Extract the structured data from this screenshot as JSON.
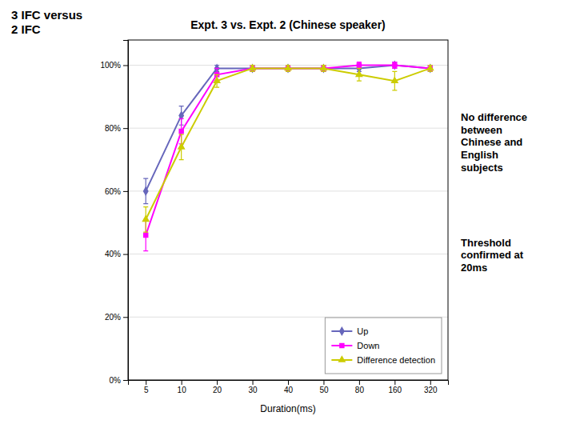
{
  "chart_data": {
    "type": "line",
    "title": "Expt. 3 vs. Expt. 2 (Chinese speaker)",
    "xlabel": "Duration(ms)",
    "categories": [
      "5",
      "10",
      "20",
      "30",
      "40",
      "50",
      "80",
      "160",
      "320"
    ],
    "series": [
      {
        "name": "Up",
        "color": "#6666bb",
        "marker": "diamond",
        "values": [
          0.6,
          0.84,
          0.99,
          0.99,
          0.99,
          0.99,
          0.99,
          1.0,
          0.99
        ],
        "errors": [
          0.04,
          0.03,
          0.01,
          0.01,
          0.01,
          0.01,
          0.01,
          0.01,
          0.01
        ]
      },
      {
        "name": "Down",
        "color": "#ff00ff",
        "marker": "square",
        "values": [
          0.46,
          0.79,
          0.97,
          0.99,
          0.99,
          0.99,
          1.0,
          1.0,
          0.99
        ],
        "errors": [
          0.05,
          0.04,
          0.02,
          0.01,
          0.01,
          0.01,
          0.01,
          0.01,
          0.01
        ]
      },
      {
        "name": "Difference detection",
        "color": "#cccc00",
        "marker": "triangle",
        "values": [
          0.51,
          0.74,
          0.95,
          0.99,
          0.99,
          0.99,
          0.97,
          0.95,
          0.99
        ],
        "errors": [
          0.04,
          0.04,
          0.02,
          0.01,
          0.01,
          0.01,
          0.02,
          0.03,
          0.01
        ]
      }
    ],
    "ylim": [
      0,
      1.08
    ],
    "yticks": [
      {
        "value": 0,
        "label": "0%"
      },
      {
        "value": 0.2,
        "label": "20%"
      },
      {
        "value": 0.4,
        "label": "40%"
      },
      {
        "value": 0.6,
        "label": "60%"
      },
      {
        "value": 0.8,
        "label": "80%"
      },
      {
        "value": 1.0,
        "label": "100%"
      }
    ],
    "grid": true,
    "legend": "lower right",
    "annotations": [
      "3 IFC versus\n2 IFC",
      "No difference\nbetween\nChinese and\nEnglish\nsubjects",
      "Threshold\nconfirmed at\n20ms"
    ]
  }
}
